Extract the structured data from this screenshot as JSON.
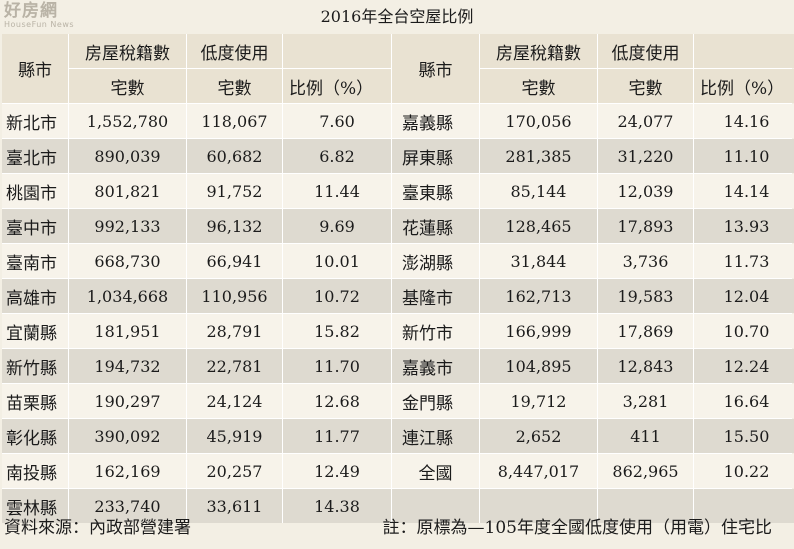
{
  "logo": {
    "cn": "好房網",
    "en": "HouseFun News"
  },
  "title": "2016年全台空屋比例",
  "headers": {
    "county": "縣市",
    "reg_top": "房屋稅籍數",
    "reg_bottom": "宅數",
    "low_top": "低度使用",
    "low_bottom": "宅數",
    "ratio": "比例（%）"
  },
  "left_rows": [
    {
      "county": "新北市",
      "registered": "1,552,780",
      "low_use": "118,067",
      "ratio": "7.60"
    },
    {
      "county": "臺北市",
      "registered": "890,039",
      "low_use": "60,682",
      "ratio": "6.82"
    },
    {
      "county": "桃園市",
      "registered": "801,821",
      "low_use": "91,752",
      "ratio": "11.44"
    },
    {
      "county": "臺中市",
      "registered": "992,133",
      "low_use": "96,132",
      "ratio": "9.69"
    },
    {
      "county": "臺南市",
      "registered": "668,730",
      "low_use": "66,941",
      "ratio": "10.01"
    },
    {
      "county": "高雄市",
      "registered": "1,034,668",
      "low_use": "110,956",
      "ratio": "10.72"
    },
    {
      "county": "宜蘭縣",
      "registered": "181,951",
      "low_use": "28,791",
      "ratio": "15.82"
    },
    {
      "county": "新竹縣",
      "registered": "194,732",
      "low_use": "22,781",
      "ratio": "11.70"
    },
    {
      "county": "苗栗縣",
      "registered": "190,297",
      "low_use": "24,124",
      "ratio": "12.68"
    },
    {
      "county": "彰化縣",
      "registered": "390,092",
      "low_use": "45,919",
      "ratio": "11.77"
    },
    {
      "county": "南投縣",
      "registered": "162,169",
      "low_use": "20,257",
      "ratio": "12.49"
    },
    {
      "county": "雲林縣",
      "registered": "233,740",
      "low_use": "33,611",
      "ratio": "14.38"
    }
  ],
  "right_rows": [
    {
      "county": "嘉義縣",
      "registered": "170,056",
      "low_use": "24,077",
      "ratio": "14.16"
    },
    {
      "county": "屏東縣",
      "registered": "281,385",
      "low_use": "31,220",
      "ratio": "11.10"
    },
    {
      "county": "臺東縣",
      "registered": "85,144",
      "low_use": "12,039",
      "ratio": "14.14"
    },
    {
      "county": "花蓮縣",
      "registered": "128,465",
      "low_use": "17,893",
      "ratio": "13.93"
    },
    {
      "county": "澎湖縣",
      "registered": "31,844",
      "low_use": "3,736",
      "ratio": "11.73"
    },
    {
      "county": "基隆市",
      "registered": "162,713",
      "low_use": "19,583",
      "ratio": "12.04"
    },
    {
      "county": "新竹市",
      "registered": "166,999",
      "low_use": "17,869",
      "ratio": "10.70"
    },
    {
      "county": "嘉義市",
      "registered": "104,895",
      "low_use": "12,843",
      "ratio": "12.24"
    },
    {
      "county": "金門縣",
      "registered": "19,712",
      "low_use": "3,281",
      "ratio": "16.64"
    },
    {
      "county": "連江縣",
      "registered": "2,652",
      "low_use": "411",
      "ratio": "15.50"
    },
    {
      "county": "全國",
      "registered": "8,447,017",
      "low_use": "862,965",
      "ratio": "10.22"
    },
    {
      "county": "",
      "registered": "",
      "low_use": "",
      "ratio": ""
    }
  ],
  "footer": {
    "source": "資料來源：內政部營建署",
    "note": "註：原標為—105年度全國低度使用（用電）住宅比"
  }
}
